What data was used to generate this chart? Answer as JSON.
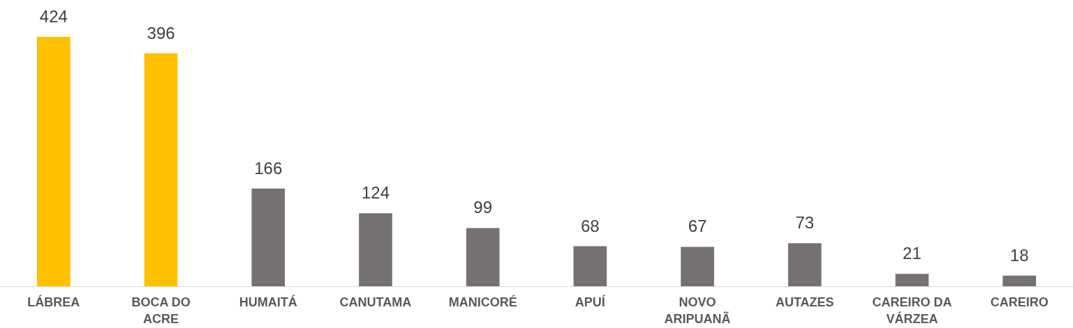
{
  "chart_data": {
    "type": "bar",
    "categories": [
      "LÁBREA",
      "BOCA DO ACRE",
      "HUMAITÁ",
      "CANUTAMA",
      "MANICORÉ",
      "APUÍ",
      "NOVO ARIPUANÃ",
      "AUTAZES",
      "CAREIRO DA VÁRZEA",
      "CAREIRO"
    ],
    "values": [
      424,
      396,
      166,
      124,
      99,
      68,
      67,
      73,
      21,
      18
    ],
    "colors": [
      "#ffc000",
      "#ffc000",
      "#767171",
      "#767171",
      "#767171",
      "#767171",
      "#767171",
      "#767171",
      "#767171",
      "#767171"
    ],
    "data_labels": true
  }
}
